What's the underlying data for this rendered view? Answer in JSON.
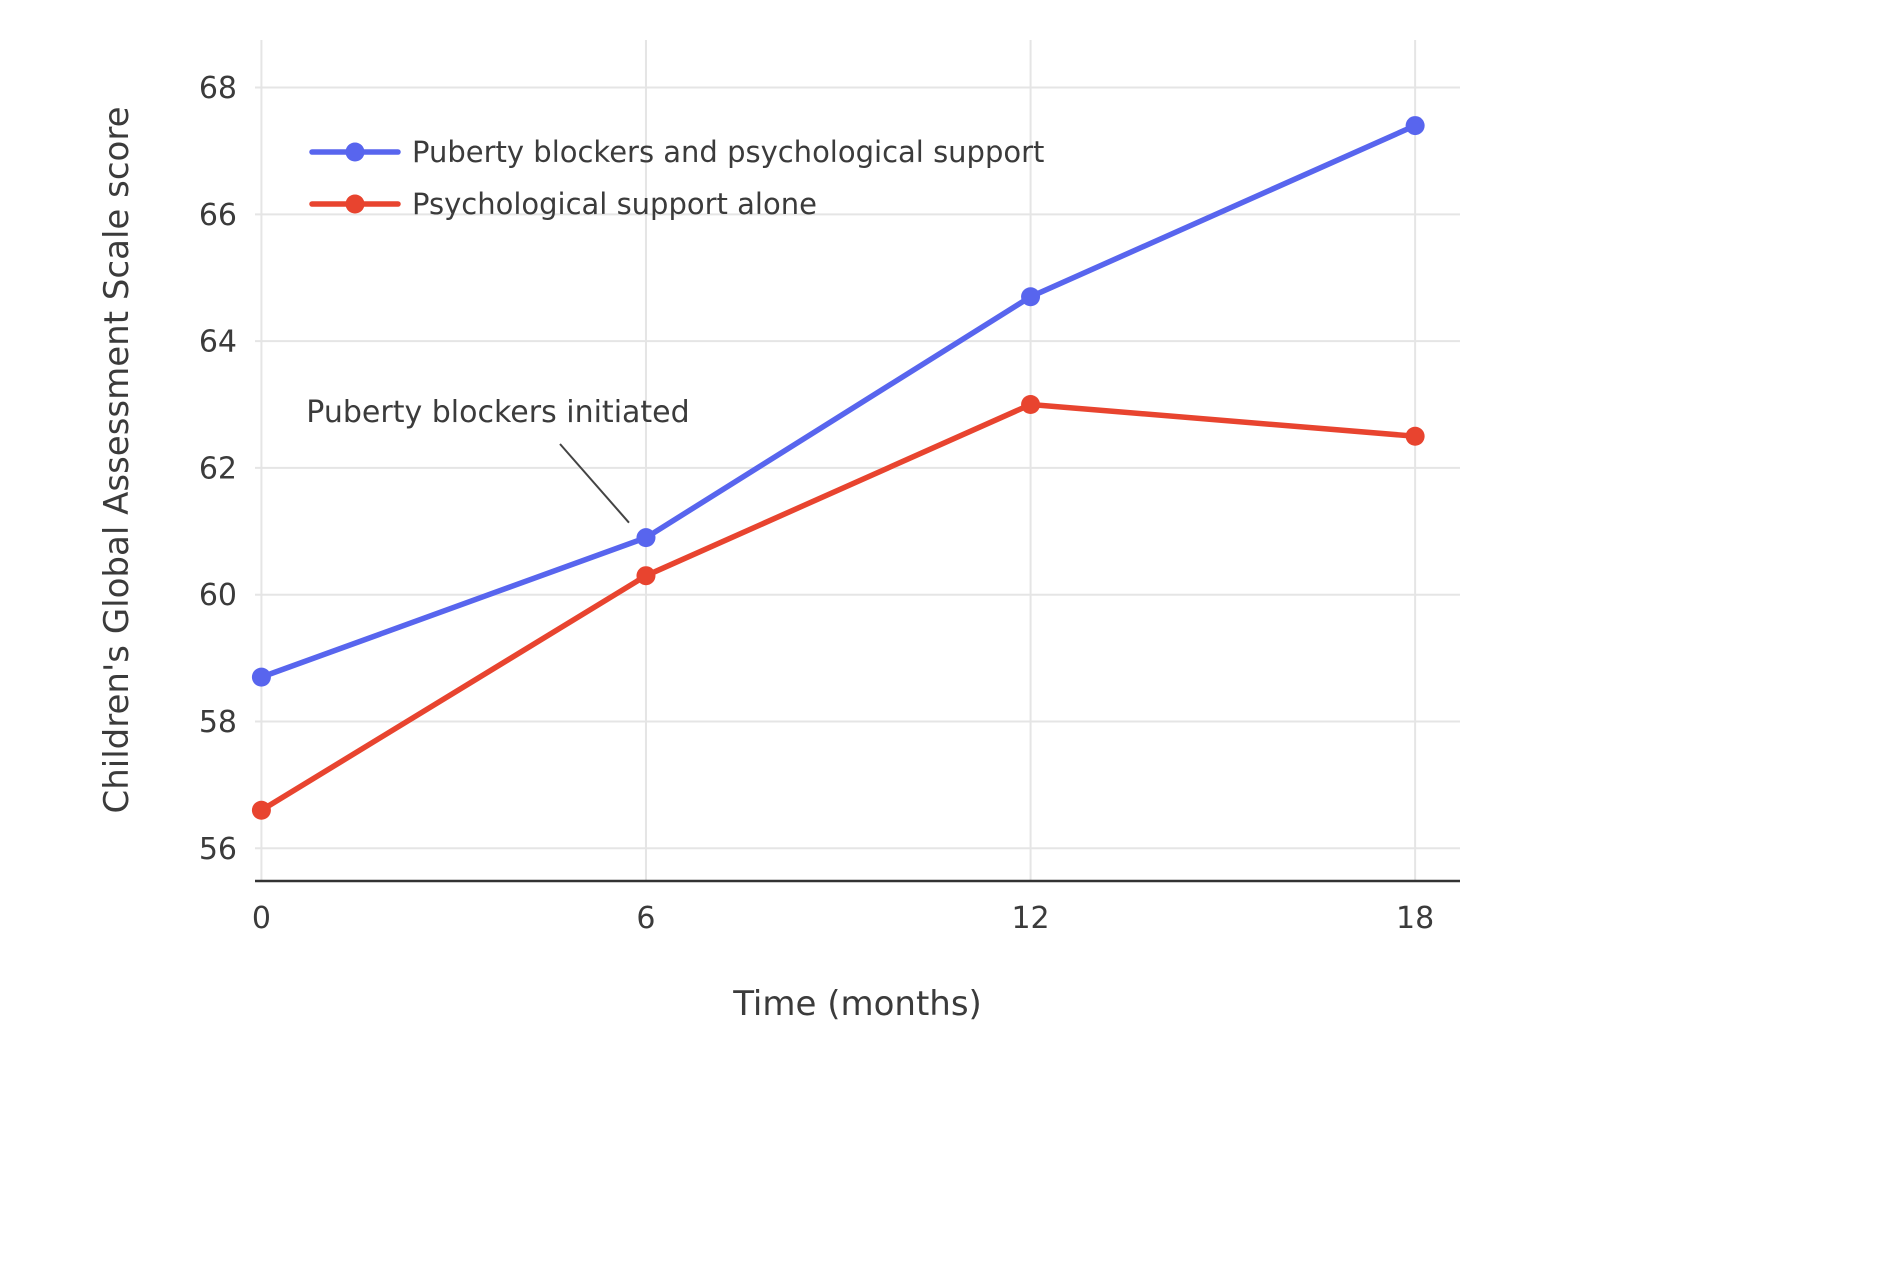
{
  "chart_data": {
    "type": "line",
    "x": [
      0,
      6,
      12,
      18
    ],
    "series": [
      {
        "name": "Puberty blockers and psychological support",
        "values": [
          58.7,
          60.9,
          64.7,
          67.4
        ],
        "color": "#5865ee"
      },
      {
        "name": "Psychological support alone",
        "values": [
          56.6,
          60.3,
          63.0,
          62.5
        ],
        "color": "#e8442f"
      }
    ],
    "title": "",
    "xlabel": "Time (months)",
    "ylabel": "Children's Global Assessment Scale score",
    "xticks": [
      0,
      6,
      12,
      18
    ],
    "yticks": [
      56,
      58,
      60,
      62,
      64,
      66,
      68
    ],
    "xlim": [
      -0.1,
      18.7
    ],
    "ylim": [
      55.5,
      68.75
    ],
    "grid": true,
    "legend_position": "top-left-inside",
    "annotation": {
      "text": "Puberty blockers initiated",
      "target_series": 0,
      "target_x": 6,
      "target_y": 60.9
    },
    "colors": {
      "gridline": "#e5e5e5",
      "axis_line": "#333333",
      "text": "#3b3b3b"
    }
  }
}
